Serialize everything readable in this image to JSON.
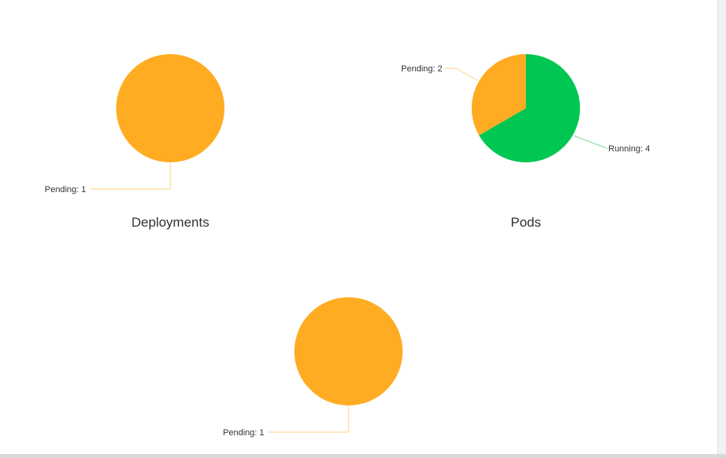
{
  "colors": {
    "pending": "#FFAC22",
    "running": "#00C752",
    "pending_line": "#FFD27A",
    "running_line": "#7ED99D"
  },
  "chart_data": [
    {
      "type": "pie",
      "title": "Deployments",
      "slices": [
        {
          "name": "Pending",
          "value": 1,
          "label": "Pending: 1",
          "color": "#FFAC22"
        }
      ]
    },
    {
      "type": "pie",
      "title": "Pods",
      "slices": [
        {
          "name": "Running",
          "value": 4,
          "label": "Running: 4",
          "color": "#00C752"
        },
        {
          "name": "Pending",
          "value": 2,
          "label": "Pending: 2",
          "color": "#FFAC22"
        }
      ]
    },
    {
      "type": "pie",
      "title": "",
      "slices": [
        {
          "name": "Pending",
          "value": 1,
          "label": "Pending: 1",
          "color": "#FFAC22"
        }
      ]
    }
  ]
}
